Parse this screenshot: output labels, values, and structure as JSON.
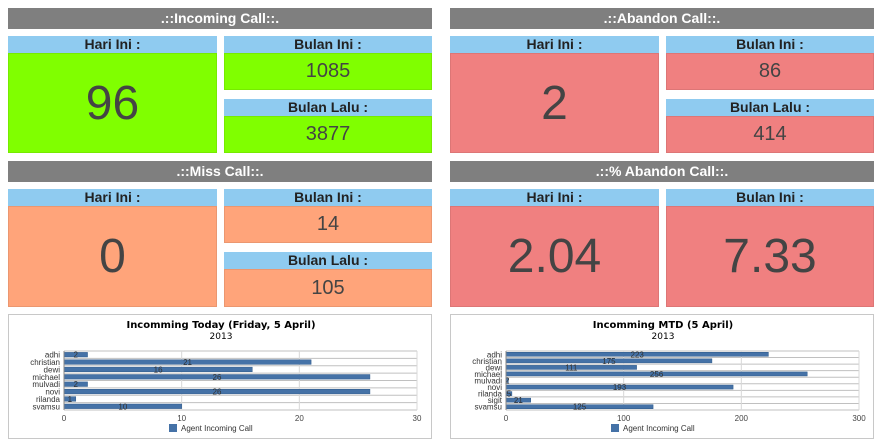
{
  "incoming": {
    "title": ".::Incoming Call::.",
    "today_label": "Hari Ini :",
    "today_value": "96",
    "month_label": "Bulan Ini :",
    "month_value": "1085",
    "last_label": "Bulan Lalu :",
    "last_value": "3877"
  },
  "abandon": {
    "title": ".::Abandon Call::.",
    "today_label": "Hari Ini :",
    "today_value": "2",
    "month_label": "Bulan Ini :",
    "month_value": "86",
    "last_label": "Bulan Lalu :",
    "last_value": "414"
  },
  "miss": {
    "title": ".::Miss Call::.",
    "today_label": "Hari Ini :",
    "today_value": "0",
    "month_label": "Bulan Ini :",
    "month_value": "14",
    "last_label": "Bulan Lalu :",
    "last_value": "105"
  },
  "pct_abandon": {
    "title": ".::% Abandon Call::.",
    "today_label": "Hari Ini :",
    "today_value": "2.04",
    "month_label": "Bulan Ini :",
    "month_value": "7.33"
  },
  "colors": {
    "green": "#80ff00",
    "red": "#f08080",
    "orange": "#ffa47a",
    "label_blue": "#8fcbf0",
    "title_gray": "#7f7f7f",
    "bar": "#4572a7"
  },
  "chart_data": [
    {
      "type": "bar",
      "orientation": "horizontal",
      "title": "Incomming Today (Friday, 5 April)",
      "subtitle": "2013",
      "categories": [
        "adhi",
        "christian",
        "dewi",
        "michael",
        "mulvadi",
        "novi",
        "rilanda",
        "svamsu"
      ],
      "series": [
        {
          "name": "Agent Incoming Call",
          "values": [
            2,
            21,
            16,
            26,
            2,
            26,
            1,
            10
          ]
        }
      ],
      "xlim": [
        0,
        30
      ],
      "ticks": [
        0,
        10,
        20,
        30
      ],
      "legend": "bottom"
    },
    {
      "type": "bar",
      "orientation": "horizontal",
      "title": "Incomming MTD (5 April)",
      "subtitle": "2013",
      "categories": [
        "adhi",
        "christian",
        "dewi",
        "michael",
        "mulvadi",
        "novi",
        "rilanda",
        "sigit",
        "svamsu"
      ],
      "series": [
        {
          "name": "Agent Incoming Call",
          "values": [
            223,
            175,
            111,
            256,
            2,
            193,
            5,
            21,
            125
          ]
        }
      ],
      "xlim": [
        0,
        300
      ],
      "ticks": [
        0,
        100,
        200,
        300
      ],
      "legend": "bottom"
    }
  ]
}
